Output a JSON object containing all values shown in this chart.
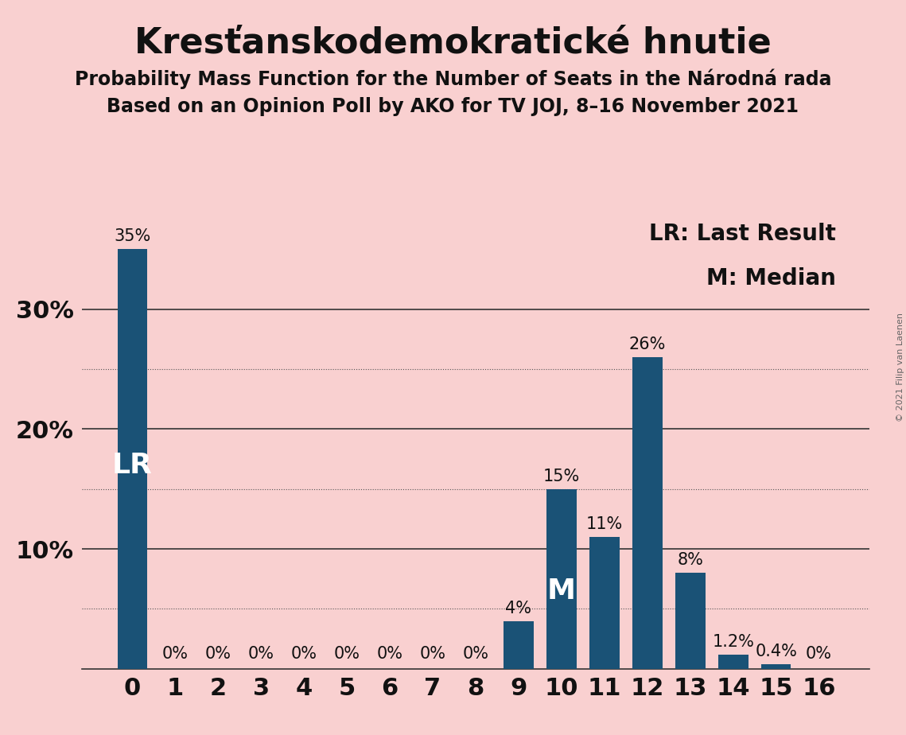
{
  "title": "Kresťanskodemokratické hnutie",
  "subtitle1": "Probability Mass Function for the Number of Seats in the Národná rada",
  "subtitle2": "Based on an Opinion Poll by AKO for TV JOJ, 8–16 November 2021",
  "copyright": "© 2021 Filip van Laenen",
  "categories": [
    0,
    1,
    2,
    3,
    4,
    5,
    6,
    7,
    8,
    9,
    10,
    11,
    12,
    13,
    14,
    15,
    16
  ],
  "values": [
    35,
    0,
    0,
    0,
    0,
    0,
    0,
    0,
    0,
    4,
    15,
    11,
    26,
    8,
    1.2,
    0.4,
    0
  ],
  "bar_color": "#1a5276",
  "background_color": "#f9d0d0",
  "legend_lr": "LR: Last Result",
  "legend_m": "M: Median",
  "ytick_labels": [
    "",
    "10%",
    "20%",
    "30%"
  ],
  "ytick_values": [
    0,
    10,
    20,
    30
  ],
  "dotted_lines": [
    5,
    15,
    25
  ],
  "solid_lines": [
    10,
    20,
    30
  ],
  "ylim": [
    0,
    38
  ],
  "title_fontsize": 32,
  "subtitle_fontsize": 17,
  "axis_fontsize": 22,
  "bar_label_fontsize": 15,
  "legend_fontsize": 20,
  "lr_label_fontsize": 26,
  "m_label_fontsize": 26,
  "bar_labels": [
    "35%",
    "0%",
    "0%",
    "0%",
    "0%",
    "0%",
    "0%",
    "0%",
    "0%",
    "4%",
    "15%",
    "11%",
    "26%",
    "8%",
    "1.2%",
    "0.4%",
    "0%"
  ]
}
